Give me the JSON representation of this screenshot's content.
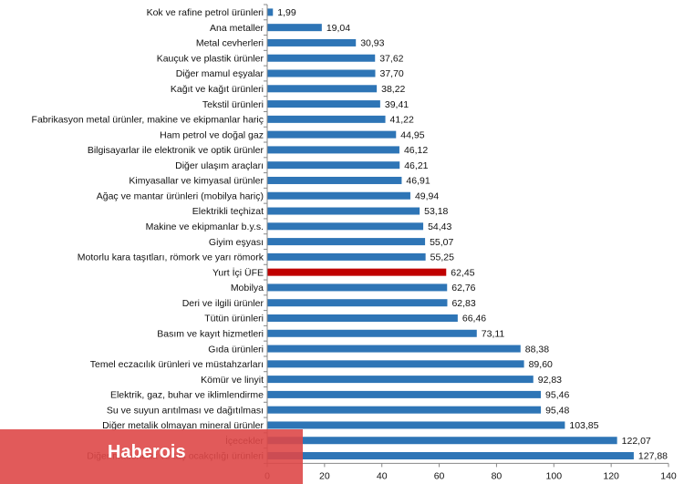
{
  "chart_data": {
    "type": "bar",
    "orientation": "horizontal",
    "categories": [
      "Kok ve rafine petrol ürünleri",
      "Ana metaller",
      "Metal cevherleri",
      "Kauçuk ve plastik ürünler",
      "Diğer mamul eşyalar",
      "Kağıt ve kağıt ürünleri",
      "Tekstil ürünleri",
      "Fabrikasyon metal ürünler, makine ve ekipmanlar hariç",
      "Ham petrol ve doğal gaz",
      "Bilgisayarlar ile elektronik ve optik ürünler",
      "Diğer ulaşım araçları",
      "Kimyasallar ve kimyasal ürünler",
      "Ağaç ve mantar ürünleri (mobilya hariç)",
      "Elektrikli teçhizat",
      "Makine ve ekipmanlar b.y.s.",
      "Giyim eşyası",
      "Motorlu kara taşıtları, römork ve yarı römork",
      "Yurt İçi ÜFE",
      "Mobilya",
      "Deri ve ilgili ürünler",
      "Tütün ürünleri",
      "Basım ve kayıt hizmetleri",
      "Gıda ürünleri",
      "Temel eczacılık ürünleri ve müstahzarları",
      "Kömür ve linyit",
      "Elektrik, gaz, buhar ve iklimlendirme",
      "Su ve suyun arıtılması ve dağıtılması",
      "Diğer metalik olmayan mineral ürünler",
      "İçecekler",
      "Diğer madencilik ve taş ocakçılığı ürünleri"
    ],
    "values": [
      1.99,
      19.04,
      30.93,
      37.62,
      37.7,
      38.22,
      39.41,
      41.22,
      44.95,
      46.12,
      46.21,
      46.91,
      49.94,
      53.18,
      54.43,
      55.07,
      55.25,
      62.45,
      62.76,
      62.83,
      66.46,
      73.11,
      88.38,
      89.6,
      92.83,
      95.46,
      95.48,
      103.85,
      122.07,
      127.88
    ],
    "value_labels": [
      "1,99",
      "19,04",
      "30,93",
      "37,62",
      "37,70",
      "38,22",
      "39,41",
      "41,22",
      "44,95",
      "46,12",
      "46,21",
      "46,91",
      "49,94",
      "53,18",
      "54,43",
      "55,07",
      "55,25",
      "62,45",
      "62,76",
      "62,83",
      "66,46",
      "73,11",
      "88,38",
      "89,60",
      "92,83",
      "95,46",
      "95,48",
      "103,85",
      "122,07",
      "127,88"
    ],
    "highlight_index": 17,
    "xlim": [
      0,
      140
    ],
    "x_ticks": [
      "0",
      "20",
      "40",
      "60",
      "80",
      "100",
      "120",
      "140"
    ],
    "bar_color": "#2e75b6",
    "highlight_color": "#c00000",
    "grid": false,
    "legend": "none"
  },
  "watermark": {
    "text": "Haberois",
    "color": "#de4848"
  }
}
